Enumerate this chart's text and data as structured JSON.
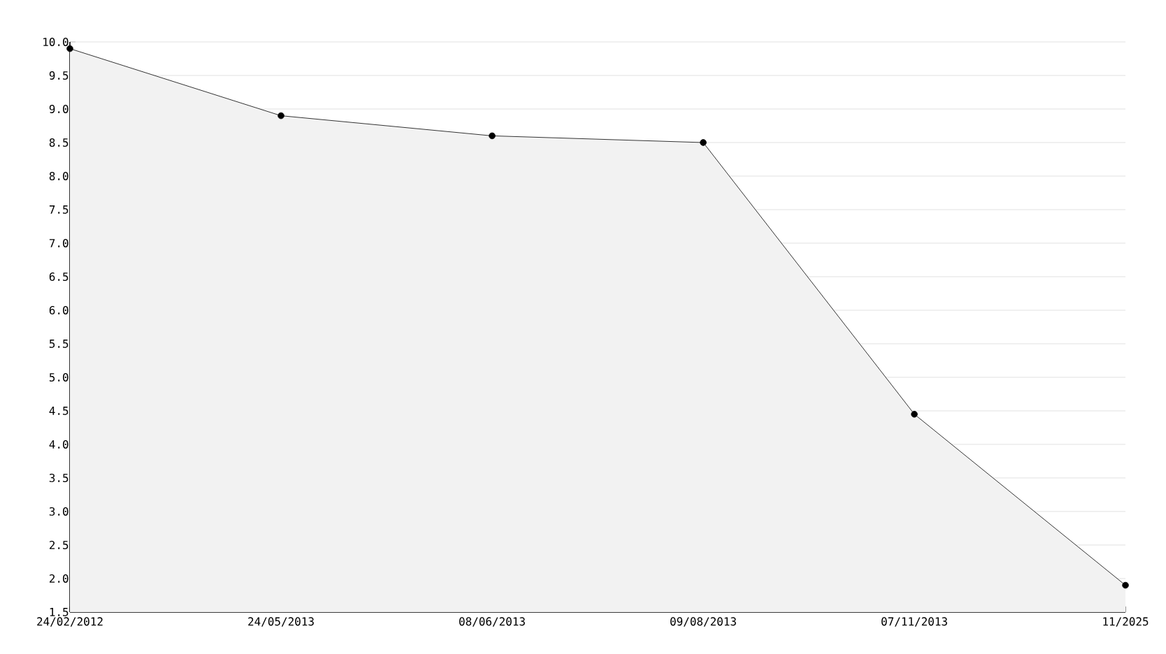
{
  "chart_data": {
    "type": "area",
    "categories": [
      "24/02/2012",
      "24/05/2013",
      "08/06/2013",
      "09/08/2013",
      "07/11/2013",
      "11/2025"
    ],
    "series": [
      {
        "color": "#000000",
        "values": [
          9.9,
          8.9,
          8.6,
          8.5,
          4.45,
          1.9
        ]
      }
    ],
    "ylim": [
      1.5,
      10.0
    ],
    "yticks": [
      1.5,
      {
        "value": 2.0,
        "label": "2.0"
      },
      2.5,
      {
        "value": 3.0,
        "label": "3.0"
      },
      3.5,
      {
        "value": 4.0,
        "label": "4.0"
      },
      4.5,
      {
        "value": 5.0,
        "label": "5.0"
      },
      5.5,
      {
        "value": 6.0,
        "label": "6.0"
      },
      6.5,
      {
        "value": 7.0,
        "label": "7.0"
      },
      7.5,
      {
        "value": 8.0,
        "label": "8.0"
      },
      8.5,
      {
        "value": 9.0,
        "label": "9.0"
      },
      9.5,
      {
        "value": 10.0,
        "label": "10.0"
      }
    ],
    "grid": "y",
    "marker": "circle"
  }
}
